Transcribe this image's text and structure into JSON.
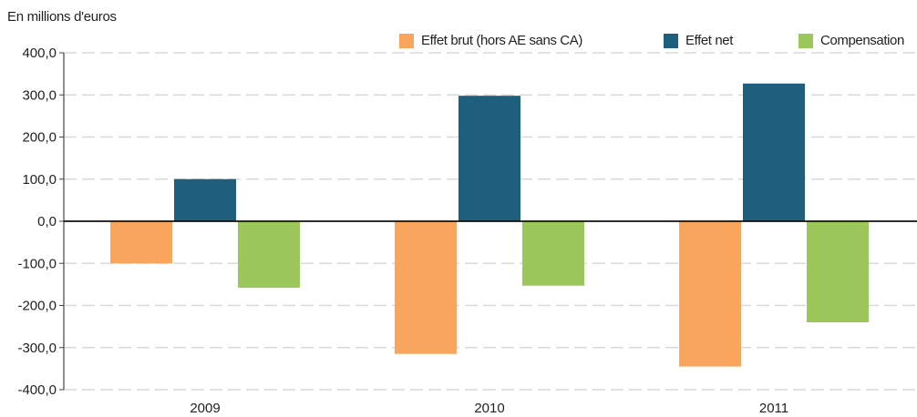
{
  "chart_data": {
    "type": "bar",
    "unit_label": "En millions d'euros",
    "categories": [
      "2009",
      "2010",
      "2011"
    ],
    "series": [
      {
        "name": "Effet brut (hors AE sans CA)",
        "color": "#F9A55E",
        "values": [
          -100,
          -315,
          -345
        ]
      },
      {
        "name": "Effet net",
        "color": "#1F5F7E",
        "values": [
          100,
          298,
          327
        ]
      },
      {
        "name": "Compensation",
        "color": "#9CC75A",
        "values": [
          -158,
          -153,
          -240
        ]
      }
    ],
    "yticks": [
      "400,0",
      "300,0",
      "200,0",
      "100,0",
      "0,0",
      "-100,0",
      "-200,0",
      "-300,0",
      "-400,0"
    ],
    "ylim": [
      -400,
      400
    ],
    "grid": true,
    "legend_position": "top-right"
  }
}
